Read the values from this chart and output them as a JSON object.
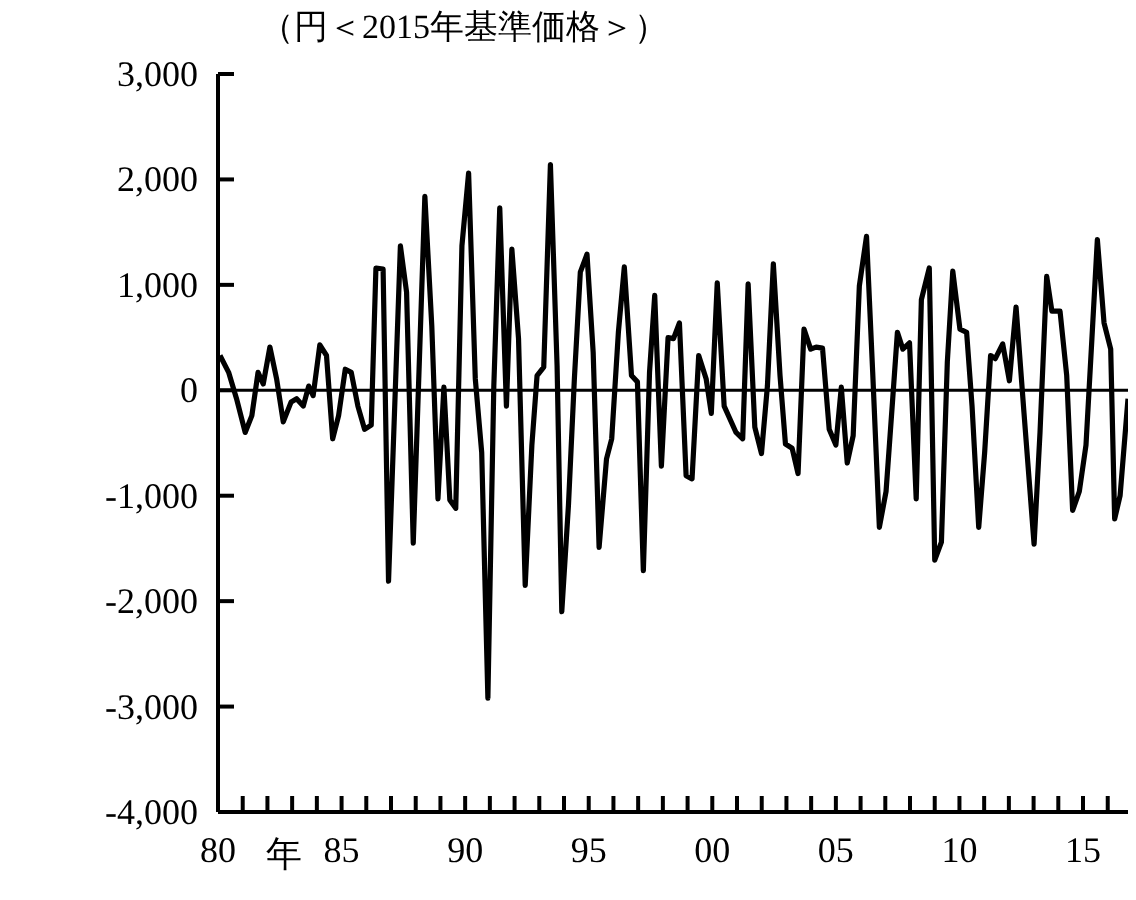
{
  "chart_data": {
    "type": "line",
    "ylabel": "（円＜2015年基準価格＞）",
    "xlabel": "年",
    "xlim": [
      1980,
      2016.82
    ],
    "xticks": [
      {
        "value": 1980,
        "label": "80"
      },
      {
        "value": 1981,
        "label": null
      },
      {
        "value": 1982,
        "label": null
      },
      {
        "value": 1983,
        "label": null
      },
      {
        "value": 1984,
        "label": null
      },
      {
        "value": 1985,
        "label": "85"
      },
      {
        "value": 1986,
        "label": null
      },
      {
        "value": 1987,
        "label": null
      },
      {
        "value": 1988,
        "label": null
      },
      {
        "value": 1989,
        "label": null
      },
      {
        "value": 1990,
        "label": "90"
      },
      {
        "value": 1991,
        "label": null
      },
      {
        "value": 1992,
        "label": null
      },
      {
        "value": 1993,
        "label": null
      },
      {
        "value": 1994,
        "label": null
      },
      {
        "value": 1995,
        "label": "95"
      },
      {
        "value": 1996,
        "label": null
      },
      {
        "value": 1997,
        "label": null
      },
      {
        "value": 1998,
        "label": null
      },
      {
        "value": 1999,
        "label": null
      },
      {
        "value": 2000,
        "label": "00"
      },
      {
        "value": 2001,
        "label": null
      },
      {
        "value": 2002,
        "label": null
      },
      {
        "value": 2003,
        "label": null
      },
      {
        "value": 2004,
        "label": null
      },
      {
        "value": 2005,
        "label": "05"
      },
      {
        "value": 2006,
        "label": null
      },
      {
        "value": 2007,
        "label": null
      },
      {
        "value": 2008,
        "label": null
      },
      {
        "value": 2009,
        "label": null
      },
      {
        "value": 2010,
        "label": "10"
      },
      {
        "value": 2011,
        "label": null
      },
      {
        "value": 2012,
        "label": null
      },
      {
        "value": 2013,
        "label": null
      },
      {
        "value": 2014,
        "label": null
      },
      {
        "value": 2015,
        "label": "15"
      },
      {
        "value": 2016,
        "label": null
      }
    ],
    "ylim": [
      -4000,
      3000
    ],
    "yticks": [
      {
        "value": -4000,
        "label": "-4,000"
      },
      {
        "value": -3000,
        "label": "-3,000"
      },
      {
        "value": -2000,
        "label": "-2,000"
      },
      {
        "value": -1000,
        "label": "-1,000"
      },
      0,
      {
        "value": 1000,
        "label": "1,000"
      },
      {
        "value": 2000,
        "label": "2,000"
      },
      {
        "value": 3000,
        "label": "3,000"
      }
    ],
    "ref_lines": [
      {
        "axis": "y",
        "value": 0,
        "color": "#000000"
      }
    ],
    "marker": "none",
    "line_style": "solid",
    "series": [
      {
        "color": "#000000",
        "x": [
          1980.08,
          1980.43,
          1980.75,
          1981.1,
          1981.37,
          1981.62,
          1981.83,
          1982.1,
          1982.37,
          1982.64,
          1982.96,
          1983.18,
          1983.45,
          1983.67,
          1983.85,
          1984.12,
          1984.39,
          1984.64,
          1984.88,
          1985.15,
          1985.39,
          1985.66,
          1985.93,
          1986.2,
          1986.39,
          1986.68,
          1986.9,
          1987.38,
          1987.63,
          1987.9,
          1988.37,
          1988.65,
          1988.9,
          1989.14,
          1989.38,
          1989.62,
          1989.87,
          1990.14,
          1990.41,
          1990.67,
          1990.92,
          1991.16,
          1991.4,
          1991.67,
          1991.89,
          1992.16,
          1992.43,
          1992.7,
          1992.91,
          1993.18,
          1993.45,
          1993.72,
          1993.91,
          1994.18,
          1994.42,
          1994.66,
          1994.93,
          1995.18,
          1995.42,
          1995.72,
          1995.93,
          1996.2,
          1996.44,
          1996.73,
          1996.97,
          1997.21,
          1997.46,
          1997.67,
          1997.94,
          1998.21,
          1998.43,
          1998.67,
          1998.94,
          1999.18,
          1999.45,
          1999.75,
          1999.96,
          2000.2,
          2000.48,
          2000.96,
          2001.23,
          2001.45,
          2001.72,
          2001.99,
          2002.23,
          2002.47,
          2002.74,
          2002.96,
          2003.23,
          2003.47,
          2003.71,
          2003.98,
          2004.2,
          2004.46,
          2004.73,
          2005.0,
          2005.22,
          2005.46,
          2005.7,
          2005.95,
          2006.24,
          2006.49,
          2006.76,
          2007.03,
          2007.3,
          2007.49,
          2007.71,
          2007.98,
          2008.25,
          2008.46,
          2008.78,
          2009.0,
          2009.27,
          2009.51,
          2009.73,
          2010.02,
          2010.29,
          2010.51,
          2010.78,
          2011.02,
          2011.26,
          2011.45,
          2011.75,
          2012.02,
          2012.29,
          2012.61,
          2013.02,
          2013.26,
          2013.53,
          2013.74,
          2014.07,
          2014.34,
          2014.58,
          2014.85,
          2015.12,
          2015.36,
          2015.58,
          2015.85,
          2016.12,
          2016.28,
          2016.5,
          2016.82
        ],
        "values": [
          330,
          170,
          -80,
          -400,
          -240,
          170,
          60,
          410,
          110,
          -300,
          -110,
          -80,
          -150,
          40,
          -50,
          430,
          330,
          -460,
          -240,
          200,
          170,
          -150,
          -370,
          -330,
          1160,
          1150,
          -1810,
          1370,
          930,
          -1450,
          1840,
          610,
          -1030,
          30,
          -1040,
          -1120,
          1370,
          2060,
          110,
          -590,
          -2920,
          40,
          1730,
          -150,
          1340,
          490,
          -1850,
          -520,
          140,
          220,
          2140,
          230,
          -2100,
          -1090,
          110,
          1120,
          1290,
          360,
          -1490,
          -650,
          -460,
          550,
          1170,
          140,
          80,
          -1710,
          170,
          900,
          -720,
          500,
          490,
          640,
          -810,
          -840,
          330,
          110,
          -220,
          1020,
          -150,
          -400,
          -460,
          1010,
          -350,
          -600,
          40,
          1200,
          140,
          -510,
          -550,
          -790,
          580,
          390,
          410,
          400,
          -370,
          -520,
          30,
          -690,
          -430,
          990,
          1460,
          170,
          -1300,
          -960,
          -80,
          550,
          390,
          450,
          -1030,
          860,
          1160,
          -1610,
          -1440,
          270,
          1130,
          580,
          550,
          -150,
          -1300,
          -590,
          330,
          300,
          440,
          90,
          790,
          -210,
          -1460,
          -400,
          1080,
          750,
          750,
          140,
          -1140,
          -960,
          -520,
          490,
          1430,
          640,
          390,
          -1220,
          -1000,
          -80
        ]
      }
    ]
  }
}
